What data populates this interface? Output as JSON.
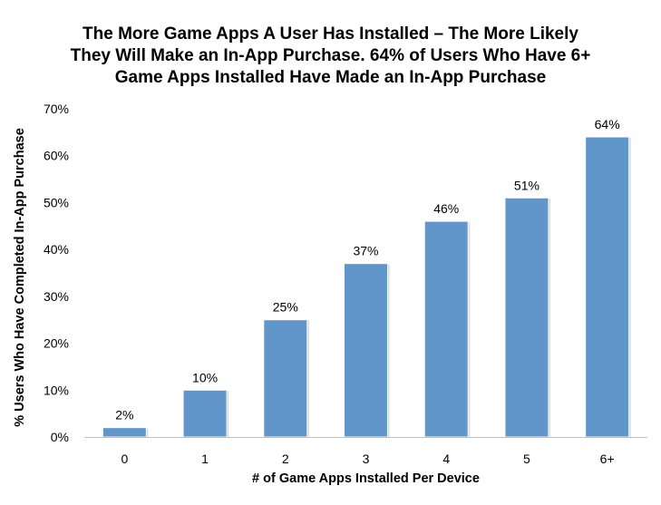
{
  "chart_data": {
    "type": "bar",
    "title_lines": [
      "The More Game Apps A User Has Installed – The More Likely",
      "They Will Make an In-App Purchase. 64% of Users Who Have 6+",
      "Game Apps Installed Have Made an In-App Purchase"
    ],
    "xlabel": "# of Game Apps Installed Per Device",
    "ylabel": "% Users Who Have Completed In-App Purchase",
    "categories": [
      "0",
      "1",
      "2",
      "3",
      "4",
      "5",
      "6+"
    ],
    "values": [
      2,
      10,
      25,
      37,
      46,
      51,
      64
    ],
    "data_labels": [
      "2%",
      "10%",
      "25%",
      "37%",
      "46%",
      "51%",
      "64%"
    ],
    "ylim": [
      0,
      70
    ],
    "yticks": [
      0,
      10,
      20,
      30,
      40,
      50,
      60,
      70
    ],
    "ytick_labels": [
      "0%",
      "10%",
      "20%",
      "30%",
      "40%",
      "50%",
      "60%",
      "70%"
    ],
    "grid": false,
    "bar_color": "#6096C9"
  }
}
